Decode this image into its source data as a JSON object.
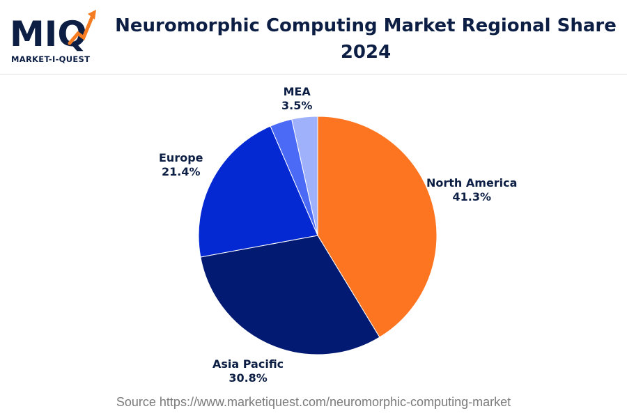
{
  "logo": {
    "mark_text": "MIQ",
    "subtitle": "MARKET-I-QUEST",
    "colors": {
      "navy": "#0c1e44",
      "orange": "#f57c20"
    }
  },
  "header": {
    "title": "Neuromorphic Computing Market Regional Share 2024"
  },
  "chart_data": {
    "type": "pie",
    "title": "Neuromorphic Computing Market Regional Share 2024",
    "slices": [
      {
        "label": "North America",
        "value": 41.3,
        "value_label": "41.3%",
        "color": "#fd7520"
      },
      {
        "label": "Asia Pacific",
        "value": 30.8,
        "value_label": "30.8%",
        "color": "#021a72"
      },
      {
        "label": "Europe",
        "value": 21.4,
        "value_label": "21.4%",
        "color": "#0429d2"
      },
      {
        "label": "",
        "value": 3.0,
        "value_label": "",
        "color": "#4b6af6"
      },
      {
        "label": "MEA",
        "value": 3.5,
        "value_label": "3.5%",
        "color": "#9fb1fb"
      }
    ],
    "start_angle": "12 o'clock",
    "direction": "clockwise",
    "legend": "none"
  },
  "footer": {
    "source": "Source https://www.marketiquest.com/neuromorphic-computing-market"
  }
}
